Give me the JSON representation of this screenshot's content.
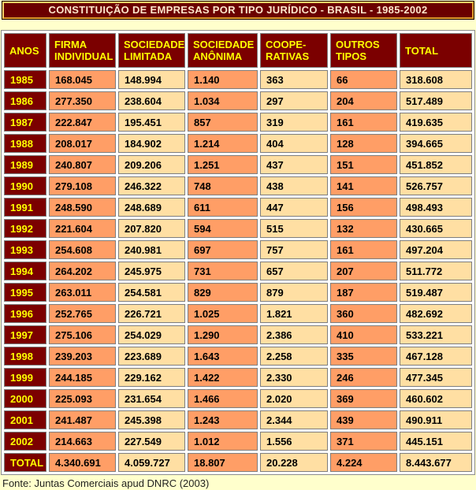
{
  "title": "CONSTITUIÇÃO DE EMPRESAS POR TIPO JURÍDICO - BRASIL - 1985-2002",
  "source_note": "Fonte: Juntas Comerciais apud DNRC (2003)",
  "colors": {
    "page_bg": "#FFFFCC",
    "title_bg": "#6B0000",
    "title_text": "#FFE8CC",
    "title_inner_border_gold": "#FFD166",
    "header_bg": "#7B0000",
    "header_text": "#FFFF00",
    "cell_orange": "#FF9E66",
    "cell_cream": "#FFDFA3",
    "cell_border": "#7D7D7D",
    "table_spacing_bg": "#FFFFFF",
    "data_text": "#000000"
  },
  "table": {
    "headers": [
      "ANOS",
      "FIRMA\nINDIVIDUAL",
      "SOCIEDADE\nLIMITADA",
      "SOCIEDADE\nANÔNIMA",
      "COOPE-\nRATIVAS",
      "OUTROS\nTIPOS",
      "TOTAL"
    ],
    "rows": [
      {
        "label": "1985",
        "values": [
          "168.045",
          "148.994",
          "1.140",
          "363",
          "66",
          "318.608"
        ]
      },
      {
        "label": "1986",
        "values": [
          "277.350",
          "238.604",
          "1.034",
          "297",
          "204",
          "517.489"
        ]
      },
      {
        "label": "1987",
        "values": [
          "222.847",
          "195.451",
          "857",
          "319",
          "161",
          "419.635"
        ]
      },
      {
        "label": "1988",
        "values": [
          "208.017",
          "184.902",
          "1.214",
          "404",
          "128",
          "394.665"
        ]
      },
      {
        "label": "1989",
        "values": [
          "240.807",
          "209.206",
          "1.251",
          "437",
          "151",
          "451.852"
        ]
      },
      {
        "label": "1990",
        "values": [
          "279.108",
          "246.322",
          "748",
          "438",
          "141",
          "526.757"
        ]
      },
      {
        "label": "1991",
        "values": [
          "248.590",
          "248.689",
          "611",
          "447",
          "156",
          "498.493"
        ]
      },
      {
        "label": "1992",
        "values": [
          "221.604",
          "207.820",
          "594",
          "515",
          "132",
          "430.665"
        ]
      },
      {
        "label": "1993",
        "values": [
          "254.608",
          "240.981",
          "697",
          "757",
          "161",
          "497.204"
        ]
      },
      {
        "label": "1994",
        "values": [
          "264.202",
          "245.975",
          "731",
          "657",
          "207",
          "511.772"
        ]
      },
      {
        "label": "1995",
        "values": [
          "263.011",
          "254.581",
          "829",
          "879",
          "187",
          "519.487"
        ]
      },
      {
        "label": "1996",
        "values": [
          "252.765",
          "226.721",
          "1.025",
          "1.821",
          "360",
          "482.692"
        ]
      },
      {
        "label": "1997",
        "values": [
          "275.106",
          "254.029",
          "1.290",
          "2.386",
          "410",
          "533.221"
        ]
      },
      {
        "label": "1998",
        "values": [
          "239.203",
          "223.689",
          "1.643",
          "2.258",
          "335",
          "467.128"
        ]
      },
      {
        "label": "1999",
        "values": [
          "244.185",
          "229.162",
          "1.422",
          "2.330",
          "246",
          "477.345"
        ]
      },
      {
        "label": "2000",
        "values": [
          "225.093",
          "231.654",
          "1.466",
          "2.020",
          "369",
          "460.602"
        ]
      },
      {
        "label": "2001",
        "values": [
          "241.487",
          "245.398",
          "1.243",
          "2.344",
          "439",
          "490.911"
        ]
      },
      {
        "label": "2002",
        "values": [
          "214.663",
          "227.549",
          "1.012",
          "1.556",
          "371",
          "445.151"
        ]
      },
      {
        "label": "TOTAL",
        "values": [
          "4.340.691",
          "4.059.727",
          "18.807",
          "20.228",
          "4.224",
          "8.443.677"
        ]
      }
    ]
  }
}
